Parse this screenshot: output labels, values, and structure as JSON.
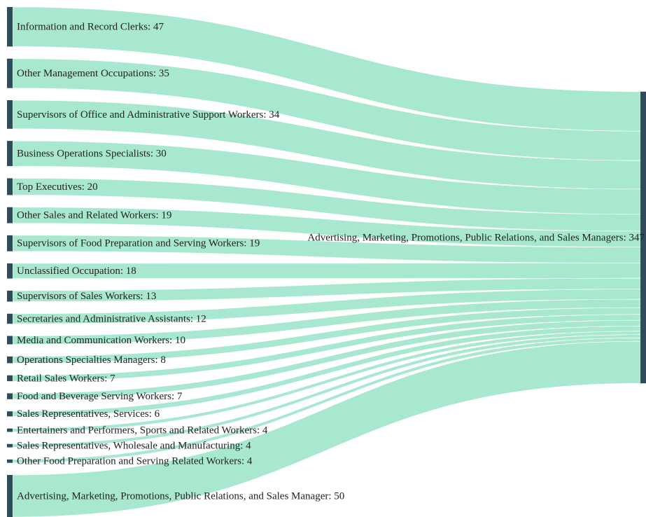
{
  "chart_data": {
    "type": "sankey",
    "link_color": "#a3e7cb",
    "node_color": "#2f4b5c",
    "target": {
      "label": "Advertising, Marketing, Promotions, Public Relations, and Sales Managers: 347",
      "value": 347
    },
    "sources": [
      {
        "label": "Information and Record Clerks: 47",
        "value": 47
      },
      {
        "label": "Other Management Occupations: 35",
        "value": 35
      },
      {
        "label": "Supervisors of Office and Administrative Support Workers: 34",
        "value": 34
      },
      {
        "label": "Business Operations Specialists: 30",
        "value": 30
      },
      {
        "label": "Top Executives: 20",
        "value": 20
      },
      {
        "label": "Other Sales and Related Workers: 19",
        "value": 19
      },
      {
        "label": "Supervisors of Food Preparation and Serving Workers: 19",
        "value": 19
      },
      {
        "label": "Unclassified Occupation: 18",
        "value": 18
      },
      {
        "label": "Supervisors of Sales Workers: 13",
        "value": 13
      },
      {
        "label": "Secretaries and Administrative Assistants: 12",
        "value": 12
      },
      {
        "label": "Media and Communication Workers: 10",
        "value": 10
      },
      {
        "label": "Operations Specialties Managers: 8",
        "value": 8
      },
      {
        "label": "Retail Sales Workers: 7",
        "value": 7
      },
      {
        "label": "Food and Beverage Serving Workers: 7",
        "value": 7
      },
      {
        "label": "Sales Representatives, Services: 6",
        "value": 6
      },
      {
        "label": "Entertainers and Performers, Sports and Related Workers: 4",
        "value": 4
      },
      {
        "label": "Sales Representatives, Wholesale and Manufacturing: 4",
        "value": 4
      },
      {
        "label": "Other Food Preparation and Serving Related Workers: 4",
        "value": 4
      },
      {
        "label": "Advertising, Marketing, Promotions, Public Relations, and Sales Manager: 50",
        "value": 50
      }
    ]
  }
}
